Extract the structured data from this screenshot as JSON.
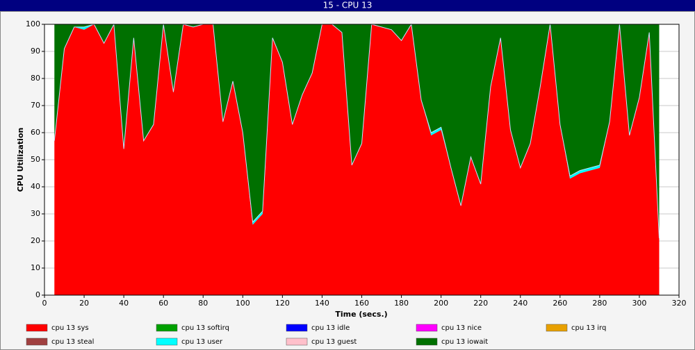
{
  "chart_data": {
    "type": "stacked_area",
    "title": "15 - CPU 13",
    "x_label": "Time (secs.)",
    "y_label": "CPU Utilization",
    "x": [
      5,
      10,
      15,
      20,
      25,
      30,
      35,
      40,
      45,
      50,
      55,
      60,
      65,
      70,
      75,
      80,
      85,
      90,
      95,
      100,
      105,
      110,
      115,
      120,
      125,
      130,
      135,
      140,
      145,
      150,
      155,
      160,
      165,
      170,
      175,
      180,
      185,
      190,
      195,
      200,
      205,
      210,
      215,
      220,
      225,
      230,
      235,
      240,
      245,
      250,
      255,
      260,
      265,
      270,
      275,
      280,
      285,
      290,
      295,
      300,
      305,
      310
    ],
    "series": [
      {
        "name": "cpu 13 sys",
        "color": "#ff0000",
        "values": [
          57,
          91,
          99,
          98,
          100,
          93,
          100,
          54,
          95,
          57,
          63,
          100,
          75,
          100,
          99,
          100,
          100,
          64,
          79,
          60,
          26,
          30,
          95,
          86,
          63,
          74,
          82,
          100,
          100,
          97,
          48,
          56,
          100,
          99,
          98,
          94,
          100,
          72,
          59,
          61,
          47,
          33,
          51,
          41,
          77,
          95,
          61,
          47,
          56,
          77,
          100,
          63,
          43,
          45,
          46,
          47,
          64,
          100,
          59,
          73,
          97,
          21
        ]
      },
      {
        "name": "cpu 13 softirq",
        "color": "#00a000",
        "values": [
          0,
          0,
          0,
          0,
          0,
          0,
          0,
          0,
          0,
          0,
          0,
          0,
          0,
          0,
          0,
          0,
          0,
          0,
          0,
          0,
          0,
          0,
          0,
          0,
          0,
          0,
          0,
          0,
          0,
          0,
          0,
          0,
          0,
          0,
          0,
          0,
          0,
          0,
          0,
          0,
          0,
          0,
          0,
          0,
          0,
          0,
          0,
          0,
          0,
          0,
          0,
          0,
          0,
          0,
          0,
          0,
          0,
          0,
          0,
          0,
          0,
          0
        ]
      },
      {
        "name": "cpu 13 idle",
        "color": "#0000ff",
        "values": [
          0,
          0,
          0,
          0,
          0,
          0,
          0,
          0,
          0,
          0,
          0,
          0,
          0,
          0,
          0,
          0,
          0,
          0,
          0,
          0,
          0,
          0,
          0,
          0,
          0,
          0,
          0,
          0,
          0,
          0,
          0,
          0,
          0,
          0,
          0,
          0,
          0,
          0,
          0,
          0,
          0,
          0,
          0,
          0,
          0,
          0,
          0,
          0,
          0,
          0,
          0,
          0,
          0,
          0,
          0,
          0,
          0,
          0,
          0,
          0,
          0,
          0
        ]
      },
      {
        "name": "cpu 13 nice",
        "color": "#ff00ff",
        "values": [
          0,
          0,
          0,
          0,
          0,
          0,
          0,
          0,
          0,
          0,
          0,
          0,
          0,
          0,
          0,
          0,
          0,
          0,
          0,
          0,
          0,
          0,
          0,
          0,
          0,
          0,
          0,
          0,
          0,
          0,
          0,
          0,
          0,
          0,
          0,
          0,
          0,
          0,
          0,
          0,
          0,
          0,
          0,
          0,
          0,
          0,
          0,
          0,
          0,
          0,
          0,
          0,
          0,
          0,
          0,
          0,
          0,
          0,
          0,
          0,
          0,
          0
        ]
      },
      {
        "name": "cpu 13 irq",
        "color": "#e8a000",
        "values": [
          0,
          0,
          0,
          0,
          0,
          0,
          0,
          0,
          0,
          0,
          0,
          0,
          0,
          0,
          0,
          0,
          0,
          0,
          0,
          0,
          0,
          0,
          0,
          0,
          0,
          0,
          0,
          0,
          0,
          0,
          0,
          0,
          0,
          0,
          0,
          0,
          0,
          0,
          0,
          0,
          0,
          0,
          0,
          0,
          0,
          0,
          0,
          0,
          0,
          0,
          0,
          0,
          0,
          0,
          0,
          0,
          0,
          0,
          0,
          0,
          0,
          0
        ]
      },
      {
        "name": "cpu 13 steal",
        "color": "#a04040",
        "values": [
          0,
          0,
          0,
          0,
          0,
          0,
          0,
          0,
          0,
          0,
          0,
          0,
          0,
          0,
          0,
          0,
          0,
          0,
          0,
          0,
          0,
          0,
          0,
          0,
          0,
          0,
          0,
          0,
          0,
          0,
          0,
          0,
          0,
          0,
          0,
          0,
          0,
          0,
          0,
          0,
          0,
          0,
          0,
          0,
          0,
          0,
          0,
          0,
          0,
          0,
          0,
          0,
          0,
          0,
          0,
          0,
          0,
          0,
          0,
          0,
          0,
          0
        ]
      },
      {
        "name": "cpu 13 user",
        "color": "#00ffff",
        "values": [
          0,
          0,
          0,
          1,
          0,
          0,
          0,
          0,
          0,
          0,
          0,
          0,
          0,
          0,
          0,
          0,
          0,
          0,
          0,
          0,
          1,
          1,
          0,
          0,
          0,
          0,
          0,
          0,
          0,
          0,
          0,
          0,
          0,
          0,
          0,
          0,
          0,
          0,
          1,
          1,
          0,
          0,
          0,
          0,
          0,
          0,
          0,
          0,
          0,
          0,
          0,
          0,
          1,
          1,
          1,
          1,
          0,
          0,
          0,
          0,
          0,
          0
        ]
      },
      {
        "name": "cpu 13 guest",
        "color": "#ffc0cb",
        "values": [
          0,
          0,
          0,
          0,
          0,
          0,
          0,
          0,
          0,
          0,
          0,
          0,
          0,
          0,
          0,
          0,
          0,
          0,
          0,
          0,
          0,
          0,
          0,
          0,
          0,
          0,
          0,
          0,
          0,
          0,
          0,
          0,
          0,
          0,
          0,
          0,
          0,
          0,
          0,
          0,
          0,
          0,
          0,
          0,
          0,
          0,
          0,
          0,
          0,
          0,
          0,
          0,
          0,
          0,
          0,
          0,
          0,
          0,
          0,
          0,
          0,
          0
        ]
      },
      {
        "name": "cpu 13 iowait",
        "color": "#007000",
        "values": [
          43,
          9,
          1,
          1,
          0,
          7,
          0,
          46,
          5,
          43,
          37,
          0,
          25,
          0,
          1,
          0,
          0,
          36,
          21,
          40,
          73,
          69,
          5,
          14,
          37,
          26,
          18,
          0,
          0,
          3,
          52,
          44,
          0,
          1,
          2,
          6,
          0,
          28,
          40,
          38,
          53,
          67,
          49,
          59,
          23,
          5,
          39,
          53,
          44,
          23,
          0,
          37,
          56,
          54,
          53,
          52,
          36,
          0,
          41,
          27,
          3,
          79
        ]
      }
    ],
    "xlim": [
      0,
      320
    ],
    "xticks": [
      0,
      20,
      40,
      60,
      80,
      100,
      120,
      140,
      160,
      180,
      200,
      220,
      240,
      260,
      280,
      300,
      320
    ],
    "ylim": [
      0,
      100
    ],
    "yticks": [
      0,
      10,
      20,
      30,
      40,
      50,
      60,
      70,
      80,
      90,
      100
    ],
    "grid": true
  }
}
